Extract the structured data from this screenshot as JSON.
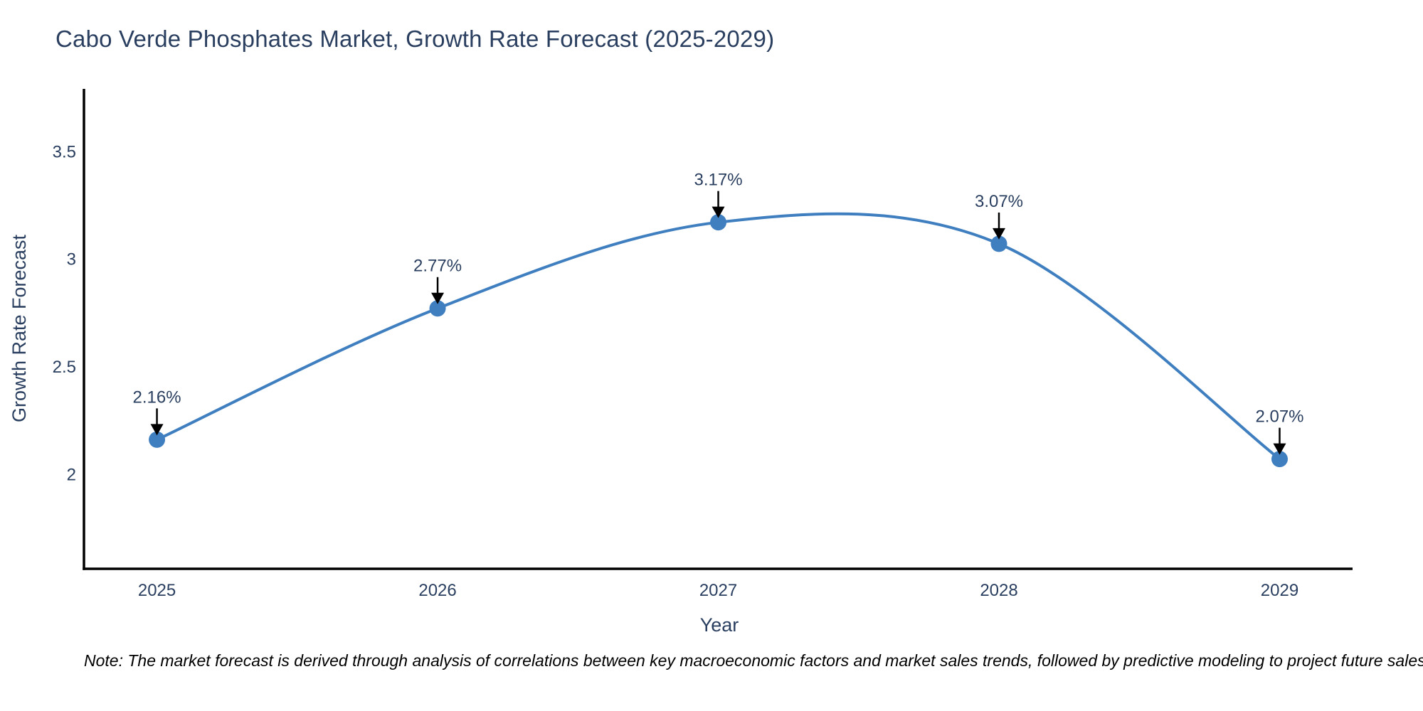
{
  "chart_data": {
    "type": "line",
    "line_shape": "spline",
    "title": "Cabo Verde Phosphates Market, Growth Rate Forecast (2025-2029)",
    "xlabel": "Year",
    "ylabel": "Growth Rate Forecast",
    "x": [
      2025,
      2026,
      2027,
      2028,
      2029
    ],
    "values": [
      2.16,
      2.77,
      3.17,
      3.07,
      2.07
    ],
    "point_labels": [
      "2.16%",
      "2.77%",
      "3.17%",
      "3.07%",
      "2.07%"
    ],
    "x_ticks": [
      "2025",
      "2026",
      "2027",
      "2028",
      "2029"
    ],
    "y_ticks": [
      2,
      2.5,
      3,
      3.5
    ],
    "y_tick_labels": [
      "2",
      "2.5",
      "3",
      "3.5"
    ],
    "xlim": [
      2024.74,
      2029.27
    ],
    "ylim": [
      1.56,
      3.79
    ],
    "grid": false,
    "legend": "none",
    "line_color": "#3f7fc0",
    "marker_color": "#3f7fc0",
    "text_color": "#2a3f5f",
    "axis_color": "#000000",
    "arrow_color": "#000000",
    "note": "Note: The market forecast is derived through analysis of correlations between key macroeconomic factors and market sales trends, followed by predictive modeling to project future sales"
  }
}
